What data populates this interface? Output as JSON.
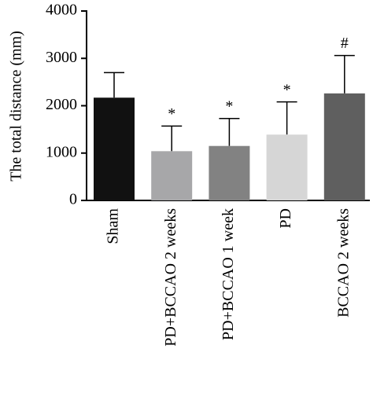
{
  "chart_data": {
    "type": "bar",
    "y_label": "The total distance (mm)",
    "categories": [
      "Sham",
      "PD+BCCAO 2 weeks",
      "PD+BCCAO 1 week",
      "PD",
      "BCCAO 2 weeks"
    ],
    "values": [
      2170,
      1040,
      1150,
      1390,
      2260
    ],
    "errors": [
      530,
      530,
      580,
      690,
      800
    ],
    "colors": [
      "#111111",
      "#a7a7a9",
      "#828282",
      "#d6d6d6",
      "#5f5f5f"
    ],
    "significance": [
      null,
      "*",
      "*",
      "*",
      "#"
    ],
    "ylim": [
      0,
      4000
    ],
    "yticks": [
      0,
      1000,
      2000,
      3000,
      4000
    ],
    "grid": false
  }
}
